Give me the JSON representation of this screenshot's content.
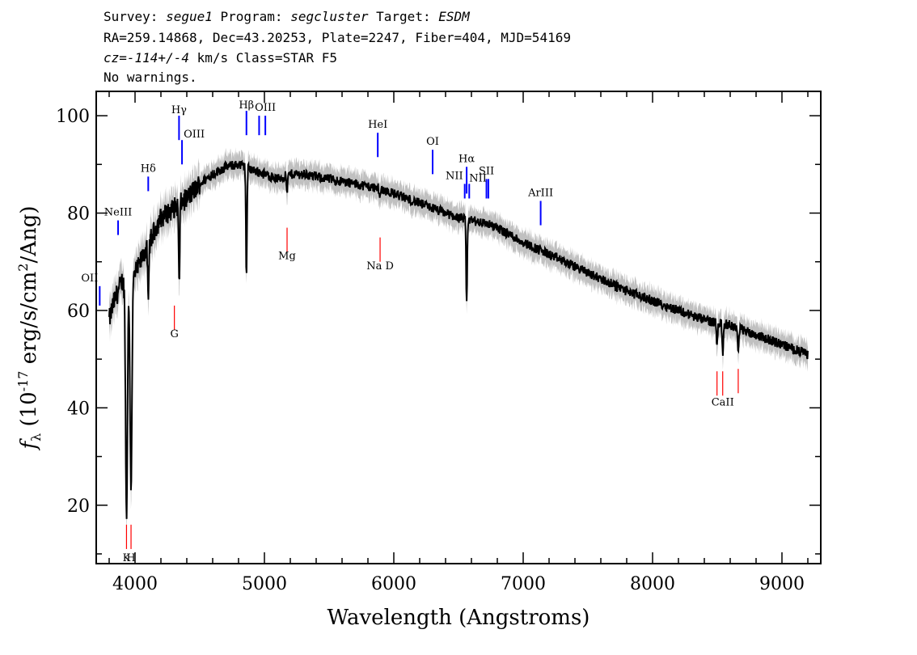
{
  "header": {
    "line1": {
      "survey_label": "Survey: ",
      "survey": "segue1",
      "program_label": " Program: ",
      "program": "segcluster",
      "target_label": " Target: ",
      "target": "ESDM"
    },
    "line2": "RA=259.14868, Dec=43.20253, Plate=2247, Fiber=404, MJD=54169",
    "line3": {
      "cz": "cz=-114+/-4",
      "rest": " km/s Class=STAR F5"
    },
    "line4": "No warnings."
  },
  "chart_data": {
    "type": "line",
    "xlabel": "Wavelength (Angstroms)",
    "ylabel": "f_λ (10^-17 erg/s/cm^2/Ang)",
    "xlim": [
      3700,
      9300
    ],
    "ylim": [
      8,
      105
    ],
    "x_ticks": [
      4000,
      5000,
      6000,
      7000,
      8000,
      9000
    ],
    "y_ticks": [
      20,
      40,
      60,
      80,
      100
    ],
    "grid": false,
    "colors": {
      "flux": "#000000",
      "error_band": "#c0c0c0",
      "emission": "#0000ff",
      "absorption": "#ff0000"
    },
    "series": [
      {
        "x": [
          3800,
          3840,
          3870,
          3900,
          3930,
          3960,
          3990,
          4030,
          4070,
          4100,
          4130,
          4160,
          4200,
          4250,
          4300,
          4350,
          4400,
          4500,
          4600,
          4700,
          4800,
          4900,
          5000,
          5100,
          5200,
          5300,
          5400,
          5500,
          5600,
          5700,
          5800,
          5900,
          6000,
          6100,
          6200,
          6300,
          6400,
          6500,
          6600,
          6700,
          6800,
          6900,
          7000,
          7200,
          7400,
          7600,
          7800,
          8000,
          8200,
          8400,
          8600,
          8800,
          9000,
          9200
        ],
        "y": [
          58,
          62,
          64,
          66,
          65,
          64,
          67,
          69,
          72,
          73,
          75,
          77,
          79,
          80,
          81,
          82,
          83,
          86,
          88,
          89.5,
          90,
          89,
          88,
          87,
          88,
          88,
          87.5,
          87,
          86.5,
          86,
          85.5,
          85,
          84,
          83,
          82,
          81,
          80,
          79,
          78.5,
          78,
          77,
          75.5,
          74,
          71.5,
          69,
          66.5,
          64,
          62,
          60,
          58,
          57,
          55,
          53,
          51
        ]
      }
    ],
    "absorption_features": [
      {
        "x": 3934,
        "y": 18
      },
      {
        "x": 3969,
        "y": 24
      },
      {
        "x": 4102,
        "y": 61
      },
      {
        "x": 4341,
        "y": 65
      },
      {
        "x": 4861,
        "y": 67
      },
      {
        "x": 5175,
        "y": 84
      },
      {
        "x": 5893,
        "y": 83
      },
      {
        "x": 6563,
        "y": 61
      },
      {
        "x": 8498,
        "y": 53
      },
      {
        "x": 8542,
        "y": 51
      },
      {
        "x": 8662,
        "y": 51
      }
    ],
    "lines": [
      {
        "label": "OII",
        "x": 3727,
        "color": "emission",
        "y1": 61,
        "y2": 65,
        "label_y": 66,
        "anchor": "end"
      },
      {
        "label": "NeIII",
        "x": 3869,
        "color": "emission",
        "y1": 75.5,
        "y2": 78.5,
        "label_y": 79.5,
        "anchor": "middle"
      },
      {
        "label": "Hδ",
        "x": 4102,
        "color": "emission",
        "y1": 84.5,
        "y2": 87.5,
        "label_y": 88.5,
        "anchor": "middle"
      },
      {
        "label": "Hγ",
        "x": 4340,
        "color": "emission",
        "y1": 95,
        "y2": 100,
        "label_y": 100.5,
        "anchor": "middle"
      },
      {
        "label": "OIII",
        "x": 4363,
        "color": "emission",
        "y1": 90,
        "y2": 95,
        "label_y": 95.5,
        "anchor": "start"
      },
      {
        "label": "Hβ",
        "x": 4861,
        "color": "emission",
        "y1": 96,
        "y2": 101,
        "label_y": 101.5,
        "anchor": "middle"
      },
      {
        "label": "OIII",
        "x": 4959,
        "color": "emission",
        "y1": 96,
        "y2": 100,
        "label_y": 0,
        "anchor": "none"
      },
      {
        "label": "OIII",
        "x": 5007,
        "color": "emission",
        "y1": 96,
        "y2": 100,
        "label_y": 101,
        "anchor": "middle"
      },
      {
        "label": "HeI",
        "x": 5876,
        "color": "emission",
        "y1": 91.5,
        "y2": 96.5,
        "label_y": 97.5,
        "anchor": "middle"
      },
      {
        "label": "OI",
        "x": 6300,
        "color": "emission",
        "y1": 88,
        "y2": 93,
        "label_y": 94,
        "anchor": "middle"
      },
      {
        "label": "NII",
        "x": 6548,
        "color": "emission",
        "y1": 83,
        "y2": 86,
        "label_y": 87,
        "anchor": "end"
      },
      {
        "label": "Hα",
        "x": 6563,
        "color": "emission",
        "y1": 84,
        "y2": 89.5,
        "label_y": 90.5,
        "anchor": "middle"
      },
      {
        "label": "NII",
        "x": 6583,
        "color": "emission",
        "y1": 83,
        "y2": 86,
        "label_y": 0,
        "anchor": "none"
      },
      {
        "label": "SII",
        "x": 6716,
        "color": "emission",
        "y1": 83,
        "y2": 87,
        "label_y": 88,
        "anchor": "middle"
      },
      {
        "label": "NII",
        "x": 6731,
        "color": "emission",
        "y1": 83,
        "y2": 87,
        "label_y": 86.5,
        "anchor": "end"
      },
      {
        "label": "ArIII",
        "x": 7135,
        "color": "emission",
        "y1": 77.5,
        "y2": 82.5,
        "label_y": 83.5,
        "anchor": "middle"
      },
      {
        "label": "K",
        "x": 3934,
        "color": "absorption",
        "y1": 11,
        "y2": 16,
        "label_y": 8.5,
        "anchor": "middle"
      },
      {
        "label": "H",
        "x": 3969,
        "color": "absorption",
        "y1": 11,
        "y2": 16,
        "label_y": 8.5,
        "anchor": "middle"
      },
      {
        "label": "G",
        "x": 4304,
        "color": "absorption",
        "y1": 56,
        "y2": 61,
        "label_y": 54.5,
        "anchor": "middle"
      },
      {
        "label": "Mg",
        "x": 5175,
        "color": "absorption",
        "y1": 72,
        "y2": 77,
        "label_y": 70.5,
        "anchor": "middle"
      },
      {
        "label": "Na D",
        "x": 5894,
        "color": "absorption",
        "y1": 70,
        "y2": 75,
        "label_y": 68.5,
        "anchor": "middle"
      },
      {
        "label": "CaII",
        "x": 8498,
        "color": "absorption",
        "y1": 42.5,
        "y2": 47.5,
        "label_y": 0,
        "anchor": "none"
      },
      {
        "label": "CaII",
        "x": 8542,
        "color": "absorption",
        "y1": 42.5,
        "y2": 47.5,
        "label_y": 40.5,
        "anchor": "middle"
      },
      {
        "label": "CaII",
        "x": 8662,
        "color": "absorption",
        "y1": 43,
        "y2": 48,
        "label_y": 0,
        "anchor": "none"
      }
    ]
  }
}
